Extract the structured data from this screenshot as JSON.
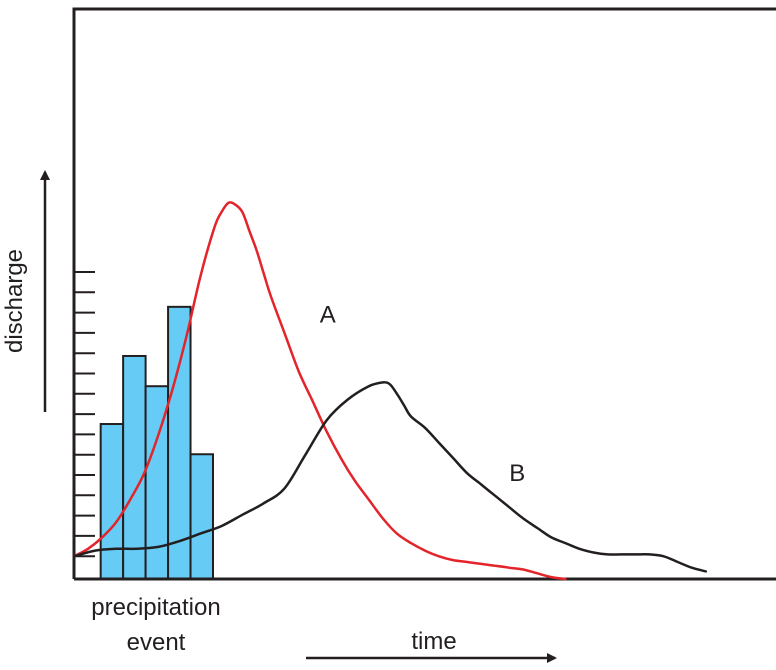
{
  "chart_data": {
    "type": "line",
    "title": "",
    "xlabel": "time",
    "ylabel": "discharge",
    "xlim": [
      0,
      100
    ],
    "ylim": [
      0,
      100
    ],
    "grid": false,
    "legend": "none",
    "bar_label": "precipitation event",
    "bar_label_lines": [
      "precipitation",
      "event"
    ],
    "bars": {
      "name": "",
      "color": "#66ccf5",
      "x_start": 3.8,
      "bar_width": 3.2,
      "values": [
        41,
        59,
        51,
        72,
        33
      ]
    },
    "series": [
      {
        "name": "",
        "label": "A",
        "color": "#e3242b",
        "label_x": 35,
        "label_y": 70,
        "x": [
          0,
          2,
          4,
          6,
          8,
          10,
          12,
          14,
          16,
          18,
          20,
          21,
          22,
          23,
          24,
          25,
          26,
          27,
          28,
          30,
          32,
          34,
          36,
          38,
          40,
          42,
          44,
          46,
          48,
          50,
          52,
          54,
          56,
          58,
          60,
          62,
          64,
          66,
          68,
          70
        ],
        "y": [
          6,
          8,
          11,
          15,
          21,
          28,
          38,
          50,
          64,
          80,
          93,
          97,
          99.5,
          99,
          97,
          92,
          87,
          81,
          75,
          65,
          55,
          47,
          39,
          32,
          26,
          21,
          16,
          12,
          9.5,
          7.5,
          6,
          5,
          4.5,
          4,
          3.5,
          3,
          2.5,
          1.5,
          0.5,
          0
        ]
      },
      {
        "name": "",
        "label": "B",
        "color": "#231f20",
        "label_x": 62,
        "label_y": 28,
        "x": [
          0,
          3,
          6,
          9,
          12,
          15,
          18,
          21,
          24,
          27,
          30,
          33,
          36,
          39,
          42,
          44,
          45,
          46,
          47,
          48,
          50,
          52,
          54,
          56,
          58,
          60,
          62,
          64,
          66,
          68,
          70,
          72,
          74,
          76,
          78,
          80,
          82,
          84,
          86,
          88,
          90
        ],
        "y": [
          6,
          7.5,
          8,
          8,
          8.5,
          10,
          12,
          14,
          17,
          20,
          24,
          33,
          42,
          47.5,
          51,
          52,
          51.5,
          49,
          46,
          43,
          40,
          36,
          32,
          28,
          25,
          22,
          19,
          16,
          13.5,
          11,
          9.5,
          8,
          7,
          6.5,
          6.5,
          6.5,
          6.5,
          6,
          4.5,
          3,
          2
        ]
      }
    ]
  }
}
